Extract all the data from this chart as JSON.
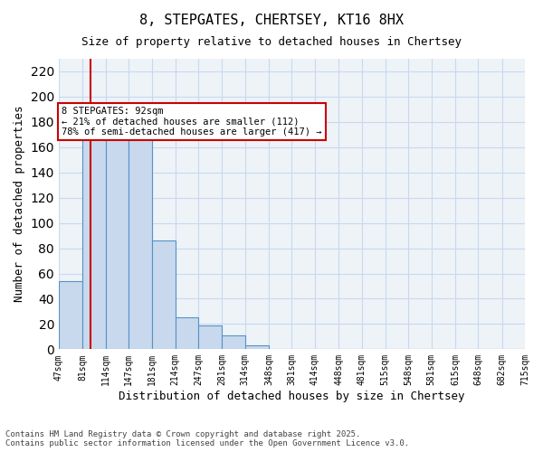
{
  "title": "8, STEPGATES, CHERTSEY, KT16 8HX",
  "subtitle": "Size of property relative to detached houses in Chertsey",
  "xlabel": "Distribution of detached houses by size in Chertsey",
  "ylabel": "Number of detached properties",
  "footer": "Contains HM Land Registry data © Crown copyright and database right 2025.\nContains public sector information licensed under the Open Government Licence v3.0.",
  "bin_labels": [
    "47sqm",
    "81sqm",
    "114sqm",
    "147sqm",
    "181sqm",
    "214sqm",
    "247sqm",
    "281sqm",
    "314sqm",
    "348sqm",
    "381sqm",
    "414sqm",
    "448sqm",
    "481sqm",
    "515sqm",
    "548sqm",
    "581sqm",
    "615sqm",
    "648sqm",
    "682sqm",
    "715sqm"
  ],
  "bin_edges": [
    47,
    81,
    114,
    147,
    181,
    214,
    247,
    281,
    314,
    348,
    381,
    414,
    448,
    481,
    515,
    548,
    581,
    615,
    648,
    682,
    715
  ],
  "bar_heights": [
    54,
    173,
    172,
    170,
    86,
    25,
    19,
    11,
    3,
    0,
    0,
    0,
    0,
    0,
    0,
    0,
    0,
    0,
    0,
    0
  ],
  "bar_color": "#c8d9ed",
  "bar_edge_color": "#5592c8",
  "property_size": 92,
  "vline_color": "#cc0000",
  "annotation_text": "8 STEPGATES: 92sqm\n← 21% of detached houses are smaller (112)\n78% of semi-detached houses are larger (417) →",
  "annotation_box_color": "#cc0000",
  "annotation_bg": "#ffffff",
  "ylim": [
    0,
    230
  ],
  "yticks": [
    0,
    20,
    40,
    60,
    80,
    100,
    120,
    140,
    160,
    180,
    200,
    220
  ],
  "grid_color": "#c8d9ed",
  "bg_color": "#eef3f8"
}
